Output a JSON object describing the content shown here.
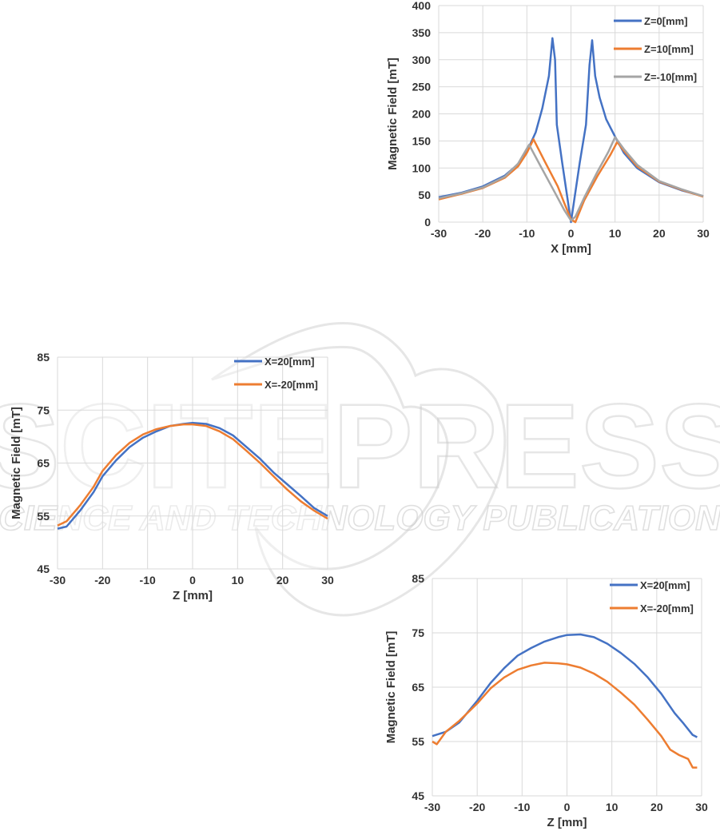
{
  "watermark": {
    "main": "SCITEPRESS",
    "sub": "SCIENCE AND TECHNOLOGY PUBLICATIONS",
    "color": "#c8c8c8"
  },
  "chart_data": [
    {
      "type": "line",
      "xlabel": "X [mm]",
      "ylabel": "Magnetic Field [mT]",
      "xlim": [
        -30,
        30
      ],
      "ylim": [
        0,
        400
      ],
      "xticks": [
        "-30",
        "-20",
        "-10",
        "0",
        "10",
        "20",
        "30"
      ],
      "yticks": [
        "0",
        "50",
        "100",
        "150",
        "200",
        "250",
        "300",
        "350",
        "400"
      ],
      "grid": true,
      "legend": "top-right",
      "series": [
        {
          "name": "Z=0[mm]",
          "color": "#4472c4",
          "points": [
            [
              -30,
              46
            ],
            [
              -25,
              54
            ],
            [
              -20,
              66
            ],
            [
              -15,
              86
            ],
            [
              -12,
              107
            ],
            [
              -10,
              130
            ],
            [
              -8,
              166
            ],
            [
              -6.5,
              210
            ],
            [
              -5,
              270
            ],
            [
              -4.2,
              340
            ],
            [
              -3.6,
              300
            ],
            [
              -3.2,
              180
            ],
            [
              -2,
              110
            ],
            [
              -1,
              55
            ],
            [
              0,
              0
            ],
            [
              1,
              55
            ],
            [
              2,
              110
            ],
            [
              3.4,
              180
            ],
            [
              4.2,
              290
            ],
            [
              4.8,
              336
            ],
            [
              5.5,
              270
            ],
            [
              6.5,
              230
            ],
            [
              8,
              190
            ],
            [
              10,
              158
            ],
            [
              12,
              128
            ],
            [
              15,
              100
            ],
            [
              20,
              74
            ],
            [
              25,
              59
            ],
            [
              30,
              48
            ]
          ]
        },
        {
          "name": "Z=10[mm]",
          "color": "#ed7d31",
          "points": [
            [
              -30,
              42
            ],
            [
              -25,
              52
            ],
            [
              -20,
              63
            ],
            [
              -15,
              82
            ],
            [
              -12,
              103
            ],
            [
              -10,
              128
            ],
            [
              -8.5,
              153
            ],
            [
              -6,
              113
            ],
            [
              -3,
              66
            ],
            [
              -1.5,
              35
            ],
            [
              0,
              5
            ],
            [
              1,
              0
            ],
            [
              3,
              40
            ],
            [
              6,
              85
            ],
            [
              9,
              125
            ],
            [
              10.5,
              148
            ],
            [
              12,
              132
            ],
            [
              15,
              103
            ],
            [
              20,
              75
            ],
            [
              25,
              60
            ],
            [
              30,
              47
            ]
          ]
        },
        {
          "name": "Z=-10[mm]",
          "color": "#a5a5a5",
          "points": [
            [
              -30,
              44
            ],
            [
              -25,
              53
            ],
            [
              -20,
              64
            ],
            [
              -15,
              84
            ],
            [
              -12,
              108
            ],
            [
              -9.5,
              143
            ],
            [
              -7,
              105
            ],
            [
              -4,
              60
            ],
            [
              -1.5,
              22
            ],
            [
              0,
              3
            ],
            [
              1,
              10
            ],
            [
              3,
              45
            ],
            [
              6,
              93
            ],
            [
              8.5,
              130
            ],
            [
              10,
              157
            ],
            [
              12,
              135
            ],
            [
              15,
              106
            ],
            [
              20,
              76
            ],
            [
              25,
              61
            ],
            [
              30,
              48
            ]
          ]
        }
      ]
    },
    {
      "type": "line",
      "xlabel": "Z [mm]",
      "ylabel": "Magnetic Field [mT]",
      "xlim": [
        -30,
        30
      ],
      "ylim": [
        45,
        85
      ],
      "xticks": [
        "-30",
        "-20",
        "-10",
        "0",
        "10",
        "20",
        "30"
      ],
      "yticks": [
        "45",
        "55",
        "65",
        "75",
        "85"
      ],
      "grid": true,
      "legend": "top-right",
      "series": [
        {
          "name": "X=20[mm]",
          "color": "#4472c4",
          "points": [
            [
              -30,
              52.6
            ],
            [
              -28,
              53.0
            ],
            [
              -25,
              56.0
            ],
            [
              -22,
              59.5
            ],
            [
              -20,
              62.5
            ],
            [
              -17,
              65.5
            ],
            [
              -14,
              68.0
            ],
            [
              -11,
              69.8
            ],
            [
              -8,
              71.0
            ],
            [
              -5,
              72.0
            ],
            [
              -2,
              72.4
            ],
            [
              0,
              72.6
            ],
            [
              3,
              72.4
            ],
            [
              6,
              71.6
            ],
            [
              9,
              70.2
            ],
            [
              12,
              68.0
            ],
            [
              15,
              65.8
            ],
            [
              18,
              63.2
            ],
            [
              21,
              61.0
            ],
            [
              24,
              58.8
            ],
            [
              27,
              56.5
            ],
            [
              30,
              55.0
            ]
          ]
        },
        {
          "name": "X=-20[mm]",
          "color": "#ed7d31",
          "points": [
            [
              -30,
              53.2
            ],
            [
              -28,
              54.0
            ],
            [
              -25,
              57.0
            ],
            [
              -22,
              60.5
            ],
            [
              -20,
              63.5
            ],
            [
              -17,
              66.5
            ],
            [
              -14,
              68.8
            ],
            [
              -11,
              70.4
            ],
            [
              -8,
              71.4
            ],
            [
              -5,
              72.0
            ],
            [
              -2,
              72.3
            ],
            [
              0,
              72.3
            ],
            [
              3,
              72.0
            ],
            [
              6,
              71.0
            ],
            [
              9,
              69.5
            ],
            [
              12,
              67.3
            ],
            [
              15,
              65.0
            ],
            [
              18,
              62.5
            ],
            [
              21,
              60.0
            ],
            [
              24,
              57.8
            ],
            [
              27,
              56.0
            ],
            [
              30,
              54.5
            ]
          ]
        }
      ]
    },
    {
      "type": "line",
      "xlabel": "Z [mm]",
      "ylabel": "Magnetic Field [mT]",
      "xlim": [
        -30,
        30
      ],
      "ylim": [
        45,
        85
      ],
      "xticks": [
        "-30",
        "-20",
        "-10",
        "0",
        "10",
        "20",
        "30"
      ],
      "yticks": [
        "45",
        "55",
        "65",
        "75",
        "85"
      ],
      "grid": true,
      "legend": "top-right",
      "series": [
        {
          "name": "X=20[mm]",
          "color": "#4472c4",
          "points": [
            [
              -30,
              56.0
            ],
            [
              -27,
              56.8
            ],
            [
              -24,
              58.5
            ],
            [
              -20,
              62.5
            ],
            [
              -17,
              65.8
            ],
            [
              -14,
              68.5
            ],
            [
              -11,
              70.8
            ],
            [
              -8,
              72.2
            ],
            [
              -5,
              73.4
            ],
            [
              -2,
              74.2
            ],
            [
              0,
              74.6
            ],
            [
              3,
              74.7
            ],
            [
              6,
              74.2
            ],
            [
              9,
              73.0
            ],
            [
              12,
              71.3
            ],
            [
              15,
              69.3
            ],
            [
              18,
              66.8
            ],
            [
              21,
              63.8
            ],
            [
              24,
              60.2
            ],
            [
              26,
              58.3
            ],
            [
              28,
              56.2
            ],
            [
              29,
              55.8
            ]
          ]
        },
        {
          "name": "X=-20[mm]",
          "color": "#ed7d31",
          "points": [
            [
              -30,
              55.0
            ],
            [
              -29,
              54.5
            ],
            [
              -27,
              56.8
            ],
            [
              -24,
              58.8
            ],
            [
              -20,
              62.0
            ],
            [
              -17,
              64.8
            ],
            [
              -14,
              66.8
            ],
            [
              -11,
              68.2
            ],
            [
              -8,
              69.0
            ],
            [
              -5,
              69.5
            ],
            [
              -2,
              69.4
            ],
            [
              0,
              69.2
            ],
            [
              3,
              68.6
            ],
            [
              6,
              67.5
            ],
            [
              9,
              66.0
            ],
            [
              12,
              64.0
            ],
            [
              15,
              61.8
            ],
            [
              18,
              59.0
            ],
            [
              21,
              56.0
            ],
            [
              23,
              53.5
            ],
            [
              25,
              52.5
            ],
            [
              27,
              51.8
            ],
            [
              28,
              50.2
            ],
            [
              29,
              50.2
            ]
          ]
        }
      ]
    }
  ]
}
